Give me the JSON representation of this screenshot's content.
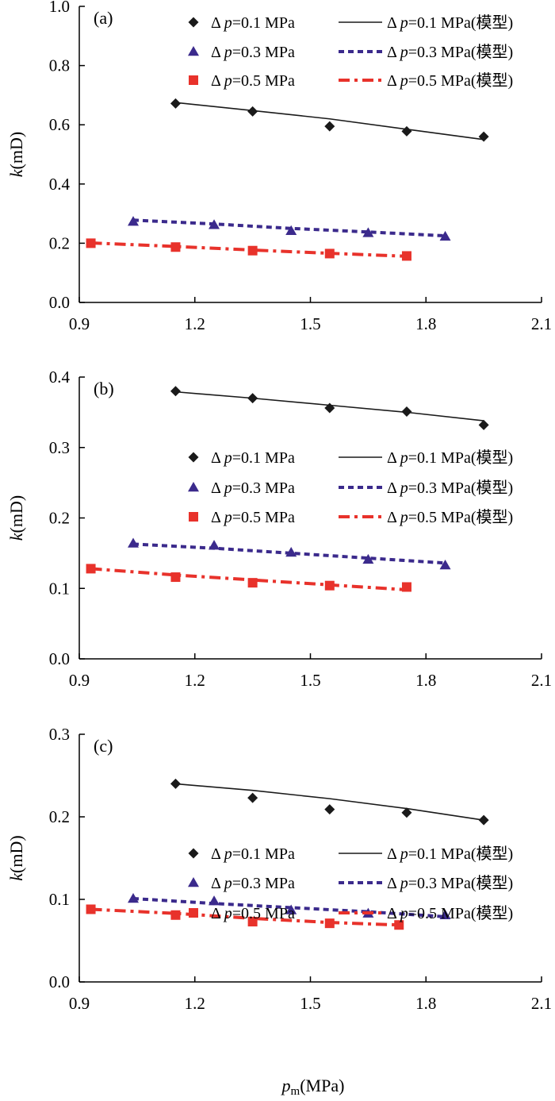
{
  "colors": {
    "p01": "#1a1a1a",
    "p03": "#3b2a8c",
    "p05": "#e8322b",
    "axis": "#000000"
  },
  "legend_labels": {
    "delta": "Δ",
    "p": "p",
    "p01": "=0.1 MPa",
    "p03": "=0.3 MPa",
    "p05": "=0.5 MPa",
    "p01_model": "=0.1 MPa(模型)",
    "p03_model": "=0.3 MPa(模型)",
    "p05_model": "=0.5 MPa(模型)"
  },
  "axis_labels": {
    "y_k": "k",
    "y_unit": "(mD)",
    "x_p": "p",
    "x_sub": "m",
    "x_unit": "(MPa)"
  },
  "chart_data": [
    {
      "type": "scatter",
      "panel_label": "(a)",
      "xlim": [
        0.9,
        2.1
      ],
      "ylim": [
        0.0,
        1.0
      ],
      "xticks": [
        "0.9",
        "1.2",
        "1.5",
        "1.8",
        "2.1"
      ],
      "yticks": [
        "0.0",
        "0.2",
        "0.4",
        "0.6",
        "0.8",
        "1.0"
      ],
      "legend_position": "top",
      "series": [
        {
          "key": "p01",
          "marker": "diamond",
          "x": [
            1.15,
            1.35,
            1.55,
            1.75,
            1.95
          ],
          "y": [
            0.672,
            0.645,
            0.595,
            0.578,
            0.56
          ]
        },
        {
          "key": "p03",
          "marker": "triangle",
          "x": [
            1.04,
            1.25,
            1.45,
            1.65,
            1.85
          ],
          "y": [
            0.273,
            0.262,
            0.242,
            0.235,
            0.223
          ]
        },
        {
          "key": "p05",
          "marker": "square",
          "x": [
            0.93,
            1.15,
            1.35,
            1.55,
            1.75
          ],
          "y": [
            0.2,
            0.187,
            0.175,
            0.165,
            0.157
          ]
        }
      ],
      "models": [
        {
          "key": "p01_model",
          "style": "solid",
          "x": [
            1.15,
            1.35,
            1.55,
            1.75,
            1.95
          ],
          "y": [
            0.675,
            0.648,
            0.62,
            0.585,
            0.55
          ]
        },
        {
          "key": "p03_model",
          "style": "dotted",
          "x": [
            1.04,
            1.25,
            1.45,
            1.65,
            1.85
          ],
          "y": [
            0.278,
            0.265,
            0.25,
            0.238,
            0.225
          ]
        },
        {
          "key": "p05_model",
          "style": "dashdot",
          "x": [
            0.93,
            1.15,
            1.35,
            1.55,
            1.75
          ],
          "y": [
            0.201,
            0.189,
            0.177,
            0.166,
            0.156
          ]
        }
      ]
    },
    {
      "type": "scatter",
      "panel_label": "(b)",
      "xlim": [
        0.9,
        2.1
      ],
      "ylim": [
        0.0,
        0.4
      ],
      "xticks": [
        "0.9",
        "1.2",
        "1.5",
        "1.8",
        "2.1"
      ],
      "yticks": [
        "0.0",
        "0.1",
        "0.2",
        "0.3",
        "0.4"
      ],
      "legend_position": "center",
      "series": [
        {
          "key": "p01",
          "marker": "diamond",
          "x": [
            1.15,
            1.35,
            1.55,
            1.75,
            1.95
          ],
          "y": [
            0.38,
            0.37,
            0.356,
            0.351,
            0.332
          ]
        },
        {
          "key": "p03",
          "marker": "triangle",
          "x": [
            1.04,
            1.25,
            1.45,
            1.65,
            1.85
          ],
          "y": [
            0.164,
            0.161,
            0.151,
            0.141,
            0.133
          ]
        },
        {
          "key": "p05",
          "marker": "square",
          "x": [
            0.93,
            1.15,
            1.35,
            1.55,
            1.75
          ],
          "y": [
            0.128,
            0.116,
            0.108,
            0.104,
            0.102
          ]
        }
      ],
      "models": [
        {
          "key": "p01_model",
          "style": "solid",
          "x": [
            1.15,
            1.35,
            1.55,
            1.75,
            1.95
          ],
          "y": [
            0.379,
            0.37,
            0.36,
            0.35,
            0.338
          ]
        },
        {
          "key": "p03_model",
          "style": "dotted",
          "x": [
            1.04,
            1.25,
            1.45,
            1.65,
            1.85
          ],
          "y": [
            0.163,
            0.157,
            0.15,
            0.143,
            0.136
          ]
        },
        {
          "key": "p05_model",
          "style": "dashdot",
          "x": [
            0.93,
            1.15,
            1.35,
            1.55,
            1.75
          ],
          "y": [
            0.128,
            0.119,
            0.112,
            0.105,
            0.098
          ]
        }
      ]
    },
    {
      "type": "scatter",
      "panel_label": "(c)",
      "xlim": [
        0.9,
        2.1
      ],
      "ylim": [
        0.0,
        0.3
      ],
      "xticks": [
        "0.9",
        "1.2",
        "1.5",
        "1.8",
        "2.1"
      ],
      "yticks": [
        "0.0",
        "0.1",
        "0.2",
        "0.3"
      ],
      "legend_position": "center",
      "series": [
        {
          "key": "p01",
          "marker": "diamond",
          "x": [
            1.15,
            1.35,
            1.55,
            1.75,
            1.95
          ],
          "y": [
            0.24,
            0.223,
            0.209,
            0.205,
            0.196
          ]
        },
        {
          "key": "p03",
          "marker": "triangle",
          "x": [
            1.04,
            1.25,
            1.45,
            1.65,
            1.85
          ],
          "y": [
            0.101,
            0.098,
            0.087,
            0.083,
            0.081
          ]
        },
        {
          "key": "p05",
          "marker": "square",
          "x": [
            0.93,
            1.15,
            1.35,
            1.55,
            1.73
          ],
          "y": [
            0.088,
            0.081,
            0.073,
            0.071,
            0.069
          ]
        }
      ],
      "models": [
        {
          "key": "p01_model",
          "style": "solid",
          "x": [
            1.15,
            1.35,
            1.55,
            1.75,
            1.95
          ],
          "y": [
            0.24,
            0.232,
            0.222,
            0.21,
            0.196
          ]
        },
        {
          "key": "p03_model",
          "style": "dotted",
          "x": [
            1.04,
            1.25,
            1.45,
            1.65,
            1.85
          ],
          "y": [
            0.101,
            0.095,
            0.09,
            0.085,
            0.079
          ]
        },
        {
          "key": "p05_model",
          "style": "dashdot",
          "x": [
            0.93,
            1.15,
            1.35,
            1.55,
            1.73
          ],
          "y": [
            0.088,
            0.083,
            0.077,
            0.072,
            0.069
          ]
        }
      ]
    }
  ]
}
